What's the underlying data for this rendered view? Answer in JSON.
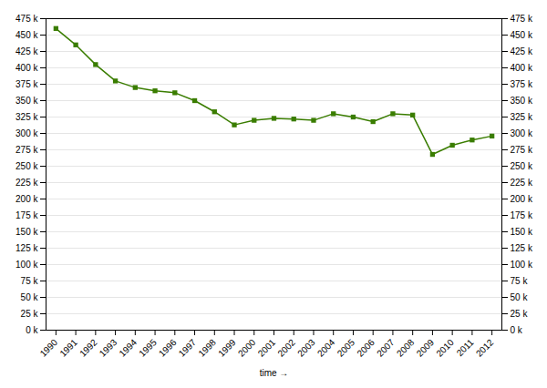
{
  "chart_data": {
    "type": "line",
    "xlabel": "time",
    "x": [
      1990,
      1991,
      1992,
      1993,
      1994,
      1995,
      1996,
      1997,
      1998,
      1999,
      2000,
      2001,
      2002,
      2003,
      2004,
      2005,
      2006,
      2007,
      2008,
      2009,
      2010,
      2011,
      2012
    ],
    "values": [
      460000,
      435000,
      405000,
      380000,
      370000,
      365000,
      362000,
      350000,
      333000,
      313000,
      320000,
      323000,
      322000,
      320000,
      330000,
      325000,
      318000,
      330000,
      328000,
      268000,
      282000,
      290000,
      296000
    ],
    "color": "#3a7d00",
    "marker": "square",
    "xlim": [
      1989.5,
      2012.5
    ],
    "xticks": [
      1990,
      1991,
      1992,
      1993,
      1994,
      1995,
      1996,
      1997,
      1998,
      1999,
      2000,
      2001,
      2002,
      2003,
      2004,
      2005,
      2006,
      2007,
      2008,
      2009,
      2010,
      2011,
      2012
    ],
    "ylim": [
      0,
      475000
    ],
    "yticks": [
      {
        "value": 0,
        "label": "0 k"
      },
      {
        "value": 25000,
        "label": "25 k"
      },
      {
        "value": 50000,
        "label": "50 k"
      },
      {
        "value": 75000,
        "label": "75 k"
      },
      {
        "value": 100000,
        "label": "100 k"
      },
      {
        "value": 125000,
        "label": "125 k"
      },
      {
        "value": 150000,
        "label": "150 k"
      },
      {
        "value": 175000,
        "label": "175 k"
      },
      {
        "value": 200000,
        "label": "200 k"
      },
      {
        "value": 225000,
        "label": "225 k"
      },
      {
        "value": 250000,
        "label": "250 k"
      },
      {
        "value": 275000,
        "label": "275 k"
      },
      {
        "value": 300000,
        "label": "300 k"
      },
      {
        "value": 325000,
        "label": "325 k"
      },
      {
        "value": 350000,
        "label": "350 k"
      },
      {
        "value": 375000,
        "label": "375 k"
      },
      {
        "value": 400000,
        "label": "400 k"
      },
      {
        "value": 425000,
        "label": "425 k"
      },
      {
        "value": 450000,
        "label": "450 k"
      },
      {
        "value": 475000,
        "label": "475 k"
      }
    ],
    "y2lim": [
      0,
      475000
    ],
    "y2ticks": [
      {
        "value": 0,
        "label": "0 k"
      },
      {
        "value": 25000,
        "label": "25 k"
      },
      {
        "value": 50000,
        "label": "50 k"
      },
      {
        "value": 75000,
        "label": "75 k"
      },
      {
        "value": 100000,
        "label": "100 k"
      },
      {
        "value": 125000,
        "label": "125 k"
      },
      {
        "value": 150000,
        "label": "150 k"
      },
      {
        "value": 175000,
        "label": "175 k"
      },
      {
        "value": 200000,
        "label": "200 k"
      },
      {
        "value": 225000,
        "label": "225 k"
      },
      {
        "value": 250000,
        "label": "250 k"
      },
      {
        "value": 275000,
        "label": "275 k"
      },
      {
        "value": 300000,
        "label": "300 k"
      },
      {
        "value": 325000,
        "label": "325 k"
      },
      {
        "value": 350000,
        "label": "350 k"
      },
      {
        "value": 375000,
        "label": "375 k"
      },
      {
        "value": 400000,
        "label": "400 k"
      },
      {
        "value": 425000,
        "label": "425 k"
      },
      {
        "value": 450000,
        "label": "450 k"
      },
      {
        "value": 475000,
        "label": "475 k"
      }
    ],
    "grid": true
  }
}
